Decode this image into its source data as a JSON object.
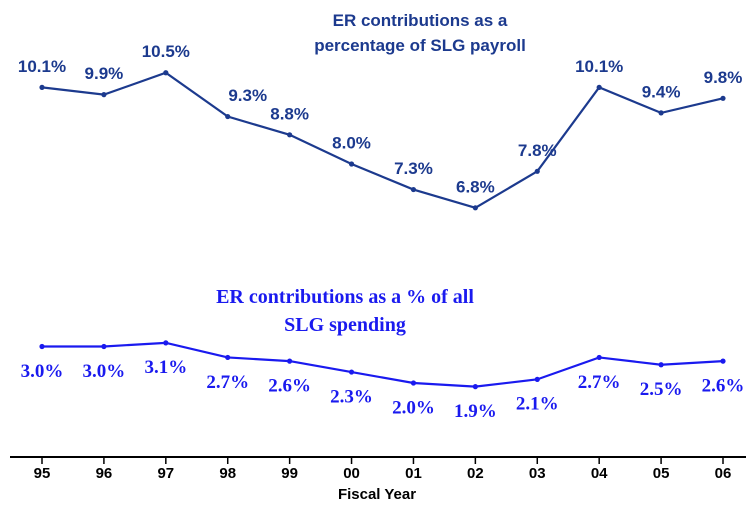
{
  "chart_data": {
    "type": "line",
    "x_label": "Fiscal Year",
    "categories": [
      "95",
      "96",
      "97",
      "98",
      "99",
      "00",
      "01",
      "02",
      "03",
      "04",
      "05",
      "06"
    ],
    "ylim": [
      0,
      12
    ],
    "series": [
      {
        "name": "ER contributions as a percentage of SLG payroll",
        "color": "#1c3a8e",
        "values": [
          10.1,
          9.9,
          10.5,
          9.3,
          8.8,
          8.0,
          7.3,
          6.8,
          7.8,
          10.1,
          9.4,
          9.8
        ],
        "value_labels": [
          "10.1%",
          "9.9%",
          "10.5%",
          "9.3%",
          "8.8%",
          "8.0%",
          "7.3%",
          "6.8%",
          "7.8%",
          "10.1%",
          "9.4%",
          "9.8%"
        ]
      },
      {
        "name": "ER contributions as a % of all SLG spending",
        "color": "#1a1aef",
        "values": [
          3.0,
          3.0,
          3.1,
          2.7,
          2.6,
          2.3,
          2.0,
          1.9,
          2.1,
          2.7,
          2.5,
          2.6
        ],
        "value_labels": [
          "3.0%",
          "3.0%",
          "3.1%",
          "2.7%",
          "2.6%",
          "2.3%",
          "2.0%",
          "1.9%",
          "2.1%",
          "2.7%",
          "2.5%",
          "2.6%"
        ]
      }
    ]
  }
}
